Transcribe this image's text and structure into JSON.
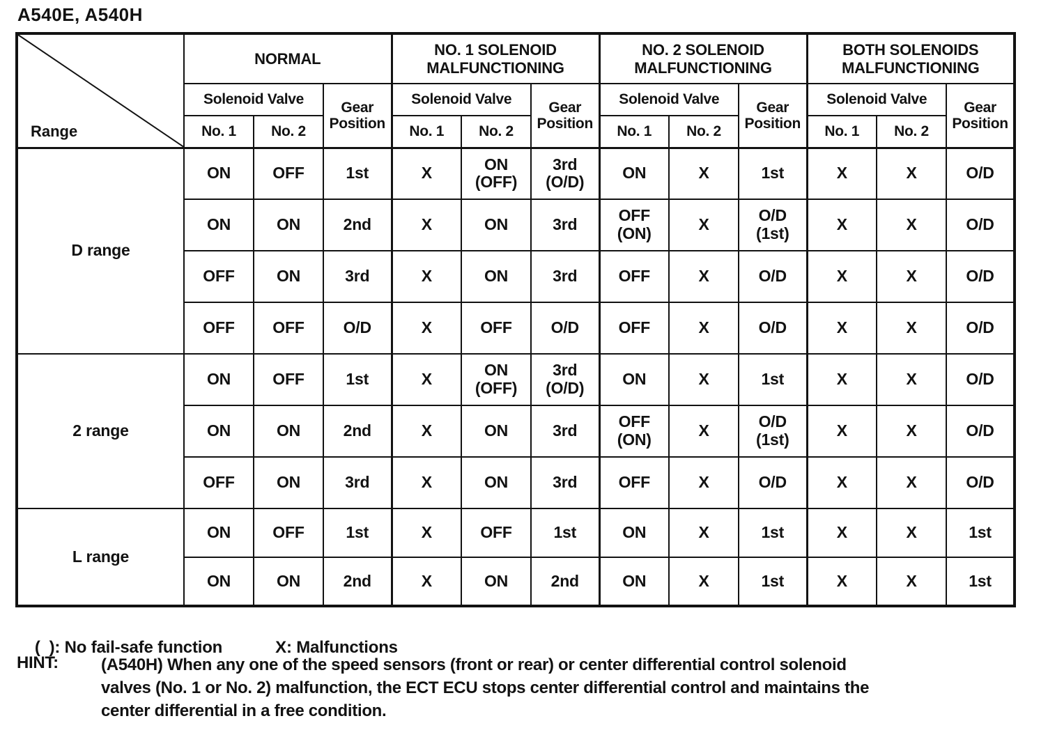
{
  "title": "A540E, A540H",
  "table": {
    "corner_label": "Range",
    "groups": [
      {
        "label": "NORMAL"
      },
      {
        "label": "NO. 1 SOLENOID\nMALFUNCTIONING"
      },
      {
        "label": "NO. 2 SOLENOID\nMALFUNCTIONING"
      },
      {
        "label": "BOTH SOLENOIDS\nMALFUNCTIONING"
      }
    ],
    "subheaders": {
      "solenoid_valve": "Solenoid Valve",
      "gear_position": "Gear Position",
      "no1": "No. 1",
      "no2": "No. 2"
    },
    "row_groups": [
      {
        "range": "D range",
        "rows": [
          [
            "ON",
            "OFF",
            "1st",
            "X",
            "ON\n(OFF)",
            "3rd\n(O/D)",
            "ON",
            "X",
            "1st",
            "X",
            "X",
            "O/D"
          ],
          [
            "ON",
            "ON",
            "2nd",
            "X",
            "ON",
            "3rd",
            "OFF\n(ON)",
            "X",
            "O/D\n(1st)",
            "X",
            "X",
            "O/D"
          ],
          [
            "OFF",
            "ON",
            "3rd",
            "X",
            "ON",
            "3rd",
            "OFF",
            "X",
            "O/D",
            "X",
            "X",
            "O/D"
          ],
          [
            "OFF",
            "OFF",
            "O/D",
            "X",
            "OFF",
            "O/D",
            "OFF",
            "X",
            "O/D",
            "X",
            "X",
            "O/D"
          ]
        ]
      },
      {
        "range": "2 range",
        "rows": [
          [
            "ON",
            "OFF",
            "1st",
            "X",
            "ON\n(OFF)",
            "3rd\n(O/D)",
            "ON",
            "X",
            "1st",
            "X",
            "X",
            "O/D"
          ],
          [
            "ON",
            "ON",
            "2nd",
            "X",
            "ON",
            "3rd",
            "OFF\n(ON)",
            "X",
            "O/D\n(1st)",
            "X",
            "X",
            "O/D"
          ],
          [
            "OFF",
            "ON",
            "3rd",
            "X",
            "ON",
            "3rd",
            "OFF",
            "X",
            "O/D",
            "X",
            "X",
            "O/D"
          ]
        ]
      },
      {
        "range": "L range",
        "rows": [
          [
            "ON",
            "OFF",
            "1st",
            "X",
            "OFF",
            "1st",
            "ON",
            "X",
            "1st",
            "X",
            "X",
            "1st"
          ],
          [
            "ON",
            "ON",
            "2nd",
            "X",
            "ON",
            "2nd",
            "ON",
            "X",
            "1st",
            "X",
            "X",
            "1st"
          ]
        ]
      }
    ]
  },
  "legend": {
    "paren": "(  ): No fail-safe function",
    "x": "X: Malfunctions"
  },
  "hint": {
    "label": "HINT:",
    "lines": [
      "(A540H) When any one of the speed sensors (front or rear) or center differential control solenoid",
      "valves (No. 1 or No. 2) malfunction, the ECT ECU stops center differential control and maintains the",
      "center differential in a free condition."
    ]
  }
}
